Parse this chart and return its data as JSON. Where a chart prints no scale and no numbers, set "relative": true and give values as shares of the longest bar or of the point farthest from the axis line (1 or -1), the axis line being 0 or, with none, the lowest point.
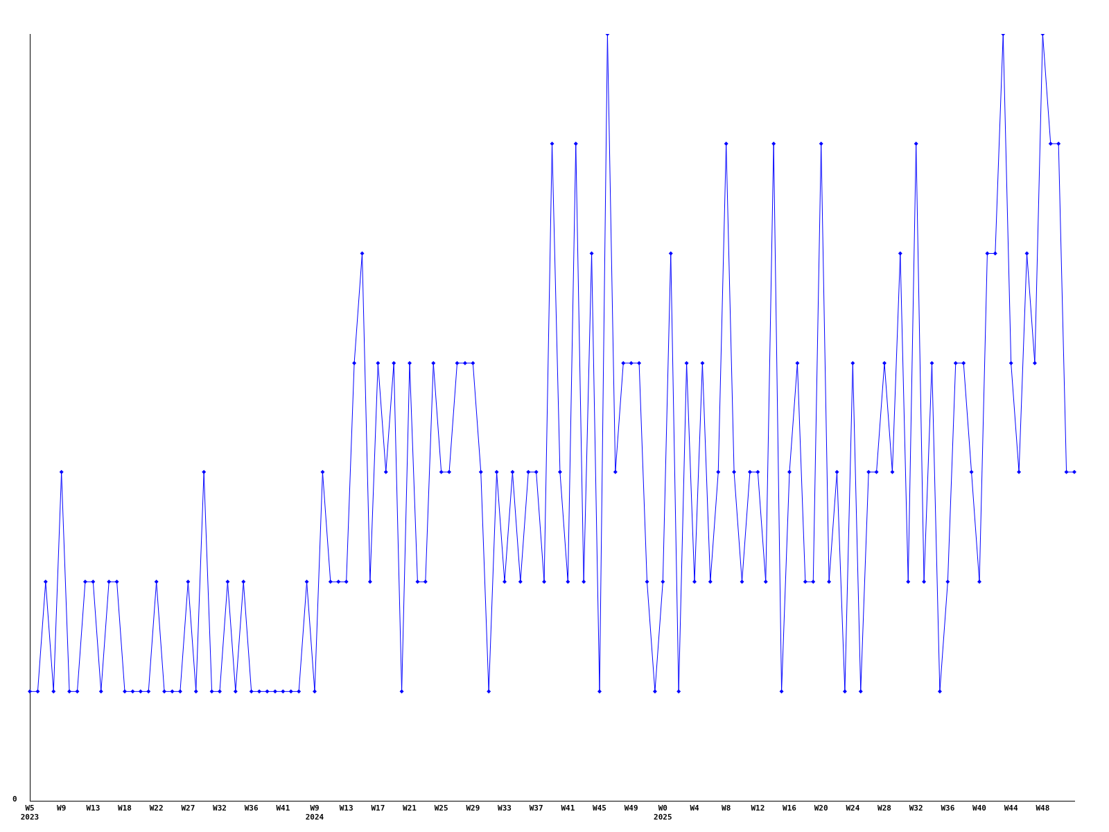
{
  "chart_data": {
    "type": "line",
    "relative": true,
    "legend": false,
    "grid": false,
    "marker": "diamond",
    "line_style": "solid",
    "annotations": [
      "0"
    ],
    "categories": [
      "W5\n2023",
      null,
      null,
      null,
      "W9",
      null,
      null,
      null,
      "W13",
      null,
      null,
      null,
      "W18",
      null,
      null,
      null,
      "W22",
      null,
      null,
      null,
      "W27",
      null,
      null,
      null,
      "W32",
      null,
      null,
      null,
      "W36",
      null,
      null,
      null,
      "W41",
      null,
      null,
      null,
      "W9\n2024",
      null,
      null,
      null,
      "W13",
      null,
      null,
      null,
      "W17",
      null,
      null,
      null,
      "W21",
      null,
      null,
      null,
      "W25",
      null,
      null,
      null,
      "W29",
      null,
      null,
      null,
      "W33",
      null,
      null,
      null,
      "W37",
      null,
      null,
      null,
      "W41",
      null,
      null,
      null,
      "W45",
      null,
      null,
      null,
      "W49",
      null,
      null,
      null,
      "W0\n2025",
      null,
      null,
      null,
      "W4",
      null,
      null,
      null,
      "W8",
      null,
      null,
      null,
      "W12",
      null,
      null,
      null,
      "W16",
      null,
      null,
      null,
      "W20",
      null,
      null,
      null,
      "W24",
      null,
      null,
      null,
      "W28",
      null,
      null,
      null,
      "W32",
      null,
      null,
      null,
      "W36",
      null,
      null,
      null,
      "W40",
      null,
      null,
      null,
      "W44",
      null,
      null,
      null,
      "W48",
      null,
      null,
      null,
      null
    ],
    "series": [
      {
        "color": "#0000ff",
        "values": [
          0.143,
          0.143,
          0.286,
          0.143,
          0.429,
          0.143,
          0.143,
          0.286,
          0.286,
          0.143,
          0.286,
          0.286,
          0.143,
          0.143,
          0.143,
          0.143,
          0.286,
          0.143,
          0.143,
          0.143,
          0.286,
          0.143,
          0.429,
          0.143,
          0.143,
          0.286,
          0.143,
          0.286,
          0.143,
          0.143,
          0.143,
          0.143,
          0.143,
          0.143,
          0.143,
          0.286,
          0.143,
          0.429,
          0.286,
          0.286,
          0.286,
          0.571,
          0.714,
          0.286,
          0.571,
          0.429,
          0.571,
          0.143,
          0.571,
          0.286,
          0.286,
          0.571,
          0.429,
          0.429,
          0.571,
          0.571,
          0.571,
          0.429,
          0.143,
          0.429,
          0.286,
          0.429,
          0.286,
          0.429,
          0.429,
          0.286,
          0.857,
          0.429,
          0.286,
          0.857,
          0.286,
          0.714,
          0.143,
          1,
          0.429,
          0.571,
          0.571,
          0.571,
          0.286,
          0.143,
          0.286,
          0.714,
          0.143,
          0.571,
          0.286,
          0.571,
          0.286,
          0.429,
          0.857,
          0.429,
          0.286,
          0.429,
          0.429,
          0.286,
          0.857,
          0.143,
          0.429,
          0.571,
          0.286,
          0.286,
          0.857,
          0.286,
          0.429,
          0.143,
          0.571,
          0.143,
          0.429,
          0.429,
          0.571,
          0.429,
          0.714,
          0.286,
          0.857,
          0.286,
          0.571,
          0.143,
          0.286,
          0.571,
          0.571,
          0.429,
          0.286,
          0.714,
          0.714,
          1,
          0.571,
          0.429,
          0.714,
          0.571,
          1,
          0.857,
          0.857,
          0.429,
          0.429
        ]
      }
    ]
  }
}
